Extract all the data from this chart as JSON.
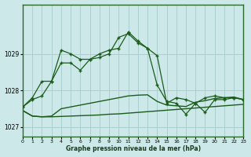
{
  "title": "Graphe pression niveau de la mer (hPa)",
  "background_color": "#cce8e8",
  "grid_color": "#aacfcf",
  "line_color": "#1a5c1a",
  "ylim": [
    1026.75,
    1030.35
  ],
  "yticks": [
    1027,
    1028,
    1029
  ],
  "xlim": [
    0,
    23
  ],
  "xticks": [
    0,
    1,
    2,
    3,
    4,
    5,
    6,
    7,
    8,
    9,
    10,
    11,
    12,
    13,
    14,
    15,
    16,
    17,
    18,
    19,
    20,
    21,
    22,
    23
  ],
  "line1_x": [
    0,
    1,
    2,
    3,
    4,
    5,
    6,
    7,
    8,
    9,
    10,
    11,
    12,
    13,
    14,
    15,
    16,
    17,
    18,
    19,
    20,
    21,
    22,
    23
  ],
  "line1": [
    1027.55,
    1027.75,
    1027.85,
    1028.25,
    1028.75,
    1028.75,
    1028.55,
    1028.85,
    1029.0,
    1029.1,
    1029.15,
    1029.6,
    1029.35,
    1029.15,
    1028.95,
    1027.65,
    1027.8,
    1027.75,
    1027.65,
    1027.4,
    1027.75,
    1027.75,
    1027.8,
    1027.75
  ],
  "line2_x": [
    0,
    1,
    2,
    3,
    4,
    5,
    6,
    7,
    8,
    9,
    10,
    11,
    12,
    13,
    14,
    15,
    16,
    17,
    18,
    19,
    20,
    21,
    22,
    23
  ],
  "line2": [
    1027.45,
    1027.3,
    1027.28,
    1027.28,
    1027.29,
    1027.3,
    1027.31,
    1027.32,
    1027.33,
    1027.35,
    1027.36,
    1027.38,
    1027.4,
    1027.42,
    1027.44,
    1027.46,
    1027.48,
    1027.5,
    1027.52,
    1027.54,
    1027.56,
    1027.58,
    1027.6,
    1027.62
  ],
  "line3_x": [
    0,
    1,
    2,
    3,
    4,
    5,
    6,
    7,
    8,
    9,
    10,
    11,
    12,
    13,
    14,
    15,
    16,
    17,
    18,
    19,
    20,
    21,
    22,
    23
  ],
  "line3": [
    1027.55,
    1027.8,
    1028.25,
    1028.25,
    1029.1,
    1029.0,
    1028.85,
    1028.85,
    1028.9,
    1029.0,
    1029.45,
    1029.55,
    1029.3,
    1029.15,
    1028.15,
    1027.7,
    1027.65,
    1027.35,
    1027.65,
    1027.8,
    1027.85,
    1027.8,
    1027.8,
    1027.75
  ],
  "line4_x": [
    0,
    1,
    2,
    3,
    4,
    5,
    6,
    7,
    8,
    9,
    10,
    11,
    12,
    13,
    14,
    15,
    16,
    17,
    18,
    19,
    20,
    21,
    22,
    23
  ],
  "line4": [
    1027.45,
    1027.3,
    1027.28,
    1027.3,
    1027.5,
    1027.55,
    1027.6,
    1027.65,
    1027.7,
    1027.75,
    1027.8,
    1027.85,
    1027.87,
    1027.88,
    1027.7,
    1027.6,
    1027.58,
    1027.56,
    1027.68,
    1027.72,
    1027.78,
    1027.8,
    1027.82,
    1027.75
  ]
}
